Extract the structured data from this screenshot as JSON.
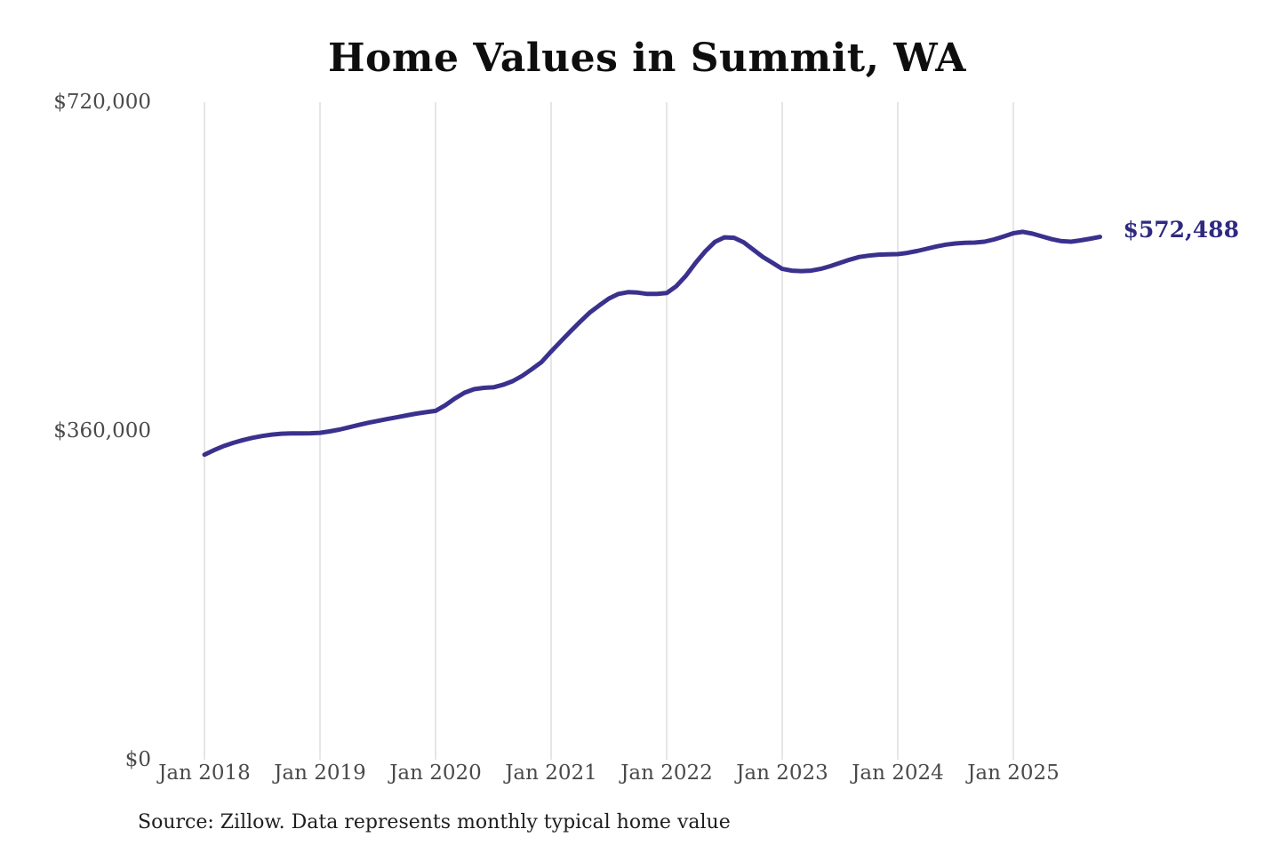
{
  "page": {
    "background": "#ffffff"
  },
  "chart_data": {
    "type": "line",
    "title": "Home Values in Summit, WA",
    "series_name": "Typical home value",
    "frequency": "monthly",
    "start_month": "Jan 2018",
    "end_month": "Oct 2025",
    "values": [
      334000,
      339000,
      343500,
      347000,
      350000,
      352500,
      354500,
      356000,
      357000,
      357300,
      357300,
      357500,
      358000,
      359500,
      361500,
      364000,
      366500,
      369000,
      371000,
      373000,
      375000,
      377000,
      379000,
      380500,
      382000,
      388000,
      395500,
      401800,
      405700,
      407200,
      407800,
      410500,
      414500,
      420300,
      427600,
      435400,
      447000,
      458000,
      469000,
      479500,
      489500,
      497500,
      505000,
      510000,
      512000,
      511500,
      510000,
      510000,
      511000,
      518500,
      530000,
      544000,
      556500,
      567000,
      572000,
      571500,
      566500,
      558500,
      550500,
      544000,
      537500,
      535500,
      535000,
      535500,
      537500,
      540500,
      544000,
      547500,
      550500,
      552000,
      553000,
      553300,
      553600,
      555000,
      557000,
      559500,
      562000,
      564000,
      565300,
      566000,
      566300,
      567200,
      569700,
      573000,
      576500,
      578000,
      576000,
      573000,
      570000,
      567800,
      567200,
      568700,
      570600,
      572488
    ],
    "latest_value": 572488,
    "end_label": "$572,488",
    "ylim": [
      0,
      720000
    ],
    "yticks_display": [
      "$720,000",
      "$360,000",
      "$0"
    ],
    "xticks": [
      "Jan 2018",
      "Jan 2019",
      "Jan 2020",
      "Jan 2021",
      "Jan 2022",
      "Jan 2023",
      "Jan 2024",
      "Jan 2025"
    ],
    "grid": "vertical-only",
    "legend": "none",
    "line_color": "#3a318e",
    "end_label_color": "#2f2a80",
    "gridline_color": "#cccccc",
    "axis_label_color": "#4a4a4a",
    "source": "Source: Zillow. Data represents monthly typical home value"
  }
}
